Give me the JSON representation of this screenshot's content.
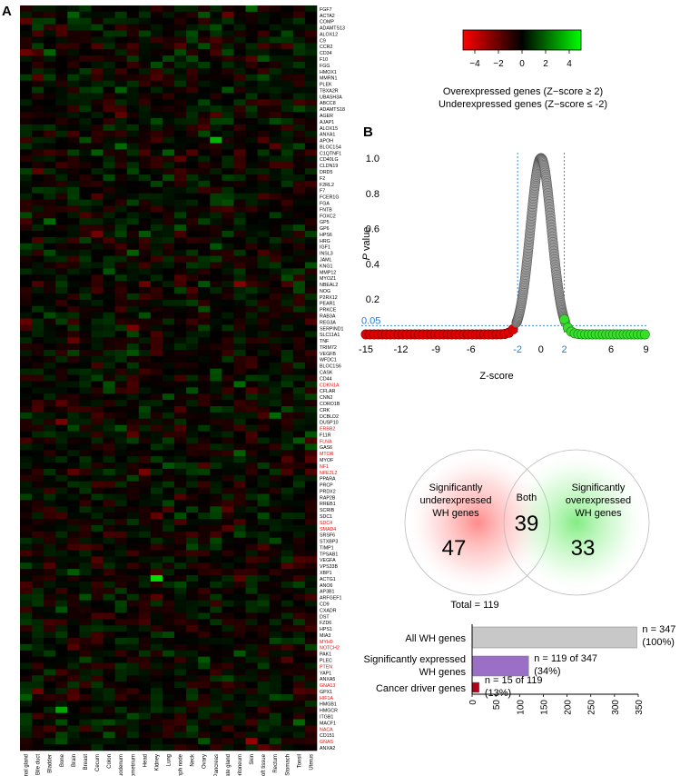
{
  "panel_labels": {
    "a": "A",
    "b": "B"
  },
  "colors": {
    "low": "#ff0000",
    "mid": "#000000",
    "high": "#00ff00",
    "driver_gene": "#e01010"
  },
  "colorbar": {
    "ticks": [
      "−4",
      "−2",
      "0",
      "2",
      "4"
    ],
    "range": [
      -5,
      5
    ]
  },
  "legend_text": {
    "line1": "Overexpressed genes (Z−score ≥ 2)",
    "line2": "Underexpressed genes (Z−score ≤ -2)"
  },
  "chart_data": [
    {
      "type": "heatmap",
      "x_categories": [
        "Adrenal gland",
        "Bile duct",
        "Bladder",
        "Bone",
        "Brain",
        "Breast",
        "Cecum",
        "Colon",
        "Duodenum",
        "Endometrium",
        "Head",
        "Kidney",
        "Lung",
        "Lymph node",
        "Neck",
        "Ovary",
        "Pancreas",
        "Prostate gland",
        "Retroperitoneum",
        "Skin",
        "Soft tissue",
        "Rectum",
        "Stomach",
        "Tonsil",
        "Uterus"
      ],
      "y_categories": [
        "FGF7",
        "ACTA2",
        "COMP",
        "ADAMTS13",
        "ALOX12",
        "C9",
        "CCR2",
        "CD34",
        "F10",
        "FGG",
        "HMOX1",
        "MMRN1",
        "PLEK",
        "TBXA2R",
        "UBASH3A",
        "ABCC8",
        "ADAMTS18",
        "AGER",
        "AJAP1",
        "ALOX15",
        "ANXA1",
        "APOH",
        "BLOC1S4",
        "C1QTNF1",
        "CD40LG",
        "CLDN19",
        "DRD5",
        "F2",
        "F2RL2",
        "F7",
        "FCER1G",
        "FGA",
        "FNTB",
        "FOXC2",
        "GP5",
        "GP6",
        "HPS6",
        "HRG",
        "IGF1",
        "INSL3",
        "JAML",
        "KNG1",
        "MMP12",
        "MYOZ1",
        "NBEAL2",
        "NOG",
        "P2RX12",
        "PEAR1",
        "PRKCE",
        "RAB3A",
        "REG3A",
        "SERPIND1",
        "SLC11A1",
        "TNF",
        "TRIM72",
        "VEGFB",
        "WFDC1",
        "BLOC1S6",
        "CASK",
        "CD44",
        "CDKN1A",
        "CFLAR",
        "CNN2",
        "CORO1B",
        "CRK",
        "DCBLD2",
        "DUSP10",
        "ERBB2",
        "F11R",
        "FLNA",
        "GAS6",
        "MTOR",
        "MYOF",
        "NF1",
        "NFE2L2",
        "PPARA",
        "PRCP",
        "PRDX2",
        "RAP2B",
        "RREB1",
        "SCRIB",
        "SDC1",
        "SDC4",
        "SMAD4",
        "SRSF6",
        "STXBP3",
        "TIMP1",
        "TPSAB1",
        "VEGFA",
        "VPS33B",
        "XBP1",
        "ACTG1",
        "ANO6",
        "AP3B1",
        "ARFGEF1",
        "CD9",
        "CXADR",
        "DST",
        "FZD6",
        "HPS1",
        "MIA3",
        "MYH9",
        "NOTCH2",
        "PAK1",
        "PLEC",
        "PTEN",
        "YAP1",
        "ANXA5",
        "GNA13",
        "GPX1",
        "HIF1A",
        "HMGB1",
        "HMGCR",
        "ITGB1",
        "MACF1",
        "NACA",
        "CD151",
        "GNAS",
        "ANXA2"
      ],
      "driver_genes": [
        "CDKN1A",
        "ERBB2",
        "FLNA",
        "MTOR",
        "NF1",
        "NFE2L2",
        "SDC4",
        "SMAD4",
        "MYH9",
        "NOTCH2",
        "PTEN",
        "GNA13",
        "HIF1A",
        "NACA",
        "GNAS"
      ],
      "value_range": [
        -5,
        5
      ],
      "seed": 7
    },
    {
      "type": "scatter",
      "xlabel": "Z-score",
      "ylabel_italic": "P",
      "ylabel_rest": " value",
      "x_ticks": [
        "-15",
        "-12",
        "-9",
        "-6",
        "-2",
        "0",
        "2",
        "6",
        "9"
      ],
      "y_ticks": [
        "0.2",
        "0.4",
        "0.6",
        "0.8",
        "1.0"
      ],
      "threshold_label": "0.05",
      "thresholds": {
        "p": 0.05,
        "z_low": -2,
        "z_high": 2
      },
      "xlim": [
        -15,
        9.5
      ],
      "ylim": [
        0,
        1.0
      ],
      "points": {
        "low_x_from": -15,
        "low_x_to": -2,
        "high_x_from": 2,
        "high_x_to": 9,
        "curve_sigma": 0.9
      }
    },
    {
      "type": "venn",
      "left": {
        "label": [
          "Significantly",
          "underexpressed",
          "WH genes"
        ],
        "value": "47"
      },
      "right": {
        "label": [
          "Significantly",
          "overexpressed",
          "WH genes"
        ],
        "value": "33"
      },
      "both": {
        "label": "Both",
        "value": "39"
      },
      "total_label": "Total = 119"
    },
    {
      "type": "bar",
      "orientation": "horizontal",
      "categories": [
        [
          "All WH genes"
        ],
        [
          "Significantly expressed",
          "WH genes"
        ],
        [
          "Cancer driver genes"
        ]
      ],
      "values": [
        347,
        119,
        15
      ],
      "colors": [
        "#c8c8c8",
        "#9b6fc6",
        "#b0001a"
      ],
      "annotations": [
        [
          "n = 347",
          "(100%)"
        ],
        [
          "n = 119 of 347",
          "(34%)"
        ],
        [
          "n = 15 of 119",
          "(13%)"
        ]
      ],
      "xlim": [
        0,
        350
      ],
      "x_ticks": [
        "0",
        "50",
        "100",
        "150",
        "200",
        "250",
        "300",
        "350"
      ]
    }
  ]
}
